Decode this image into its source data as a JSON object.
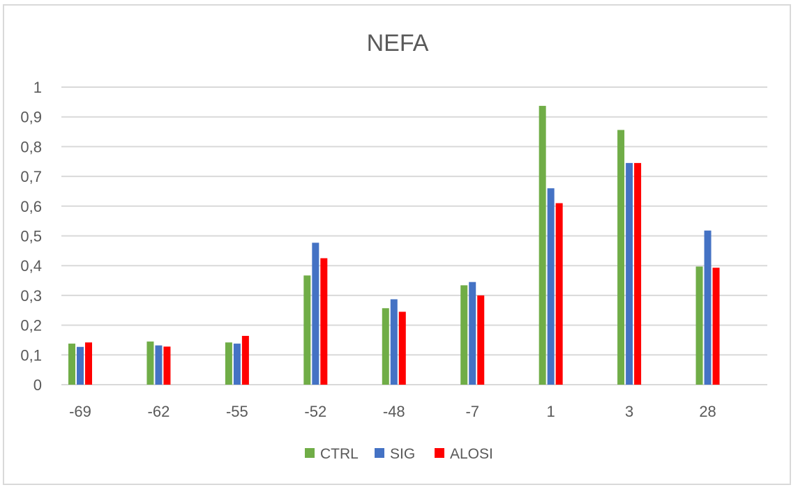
{
  "chart_data": {
    "type": "bar",
    "title": "NEFA",
    "categories": [
      "-69",
      "-62",
      "-55",
      "-52",
      "-48",
      "-7",
      "1",
      "3",
      "28"
    ],
    "series": [
      {
        "name": "CTRL",
        "color": "#70ad47",
        "values": [
          0.138,
          0.145,
          0.142,
          0.367,
          0.257,
          0.334,
          0.937,
          0.856,
          0.397
        ]
      },
      {
        "name": "SIG",
        "color": "#4472c4",
        "values": [
          0.127,
          0.132,
          0.138,
          0.477,
          0.287,
          0.345,
          0.66,
          0.745,
          0.518
        ]
      },
      {
        "name": "ALOSI",
        "color": "#ff0000",
        "values": [
          0.142,
          0.128,
          0.164,
          0.425,
          0.245,
          0.3,
          0.61,
          0.745,
          0.393
        ]
      }
    ],
    "yticks": [
      "0",
      "0,1",
      "0,2",
      "0,3",
      "0,4",
      "0,5",
      "0,6",
      "0,7",
      "0,8",
      "0,9",
      "1"
    ],
    "ylim": [
      0,
      1
    ],
    "grid": true,
    "legend": "bottom"
  }
}
